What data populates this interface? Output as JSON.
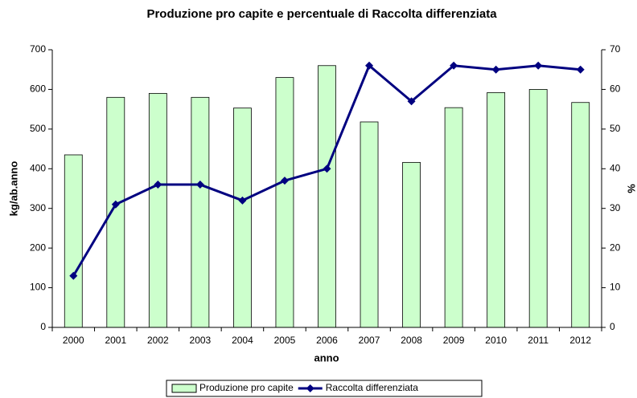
{
  "chart_data": {
    "type": "bar",
    "title": "Produzione pro capite e percentuale di Raccolta differenziata",
    "x_label": "anno",
    "y_label": "kg/ab.anno",
    "y2_label": "%",
    "categories": [
      "2000",
      "2001",
      "2002",
      "2003",
      "2004",
      "2005",
      "2006",
      "2007",
      "2008",
      "2009",
      "2010",
      "2011",
      "2012"
    ],
    "series": [
      {
        "name": "Produzione pro capite",
        "color": "#ccffcc",
        "type": "bar",
        "values": [
          435,
          580,
          590,
          580,
          553,
          630,
          660,
          518,
          416,
          554,
          592,
          600,
          567
        ]
      },
      {
        "name": "Raccolta differenziata",
        "color": "#000080",
        "type": "line",
        "axis": "y2",
        "values": [
          13,
          31,
          36,
          36,
          32,
          37,
          40,
          66,
          57,
          66,
          65,
          66,
          65
        ]
      }
    ],
    "ylim": [
      0,
      700
    ],
    "yticks": [
      0,
      100,
      200,
      300,
      400,
      500,
      600,
      700
    ],
    "y2lim": [
      0,
      70
    ],
    "y2ticks": [
      0,
      10,
      20,
      30,
      40,
      50,
      60,
      70
    ],
    "legend": "bottom"
  }
}
